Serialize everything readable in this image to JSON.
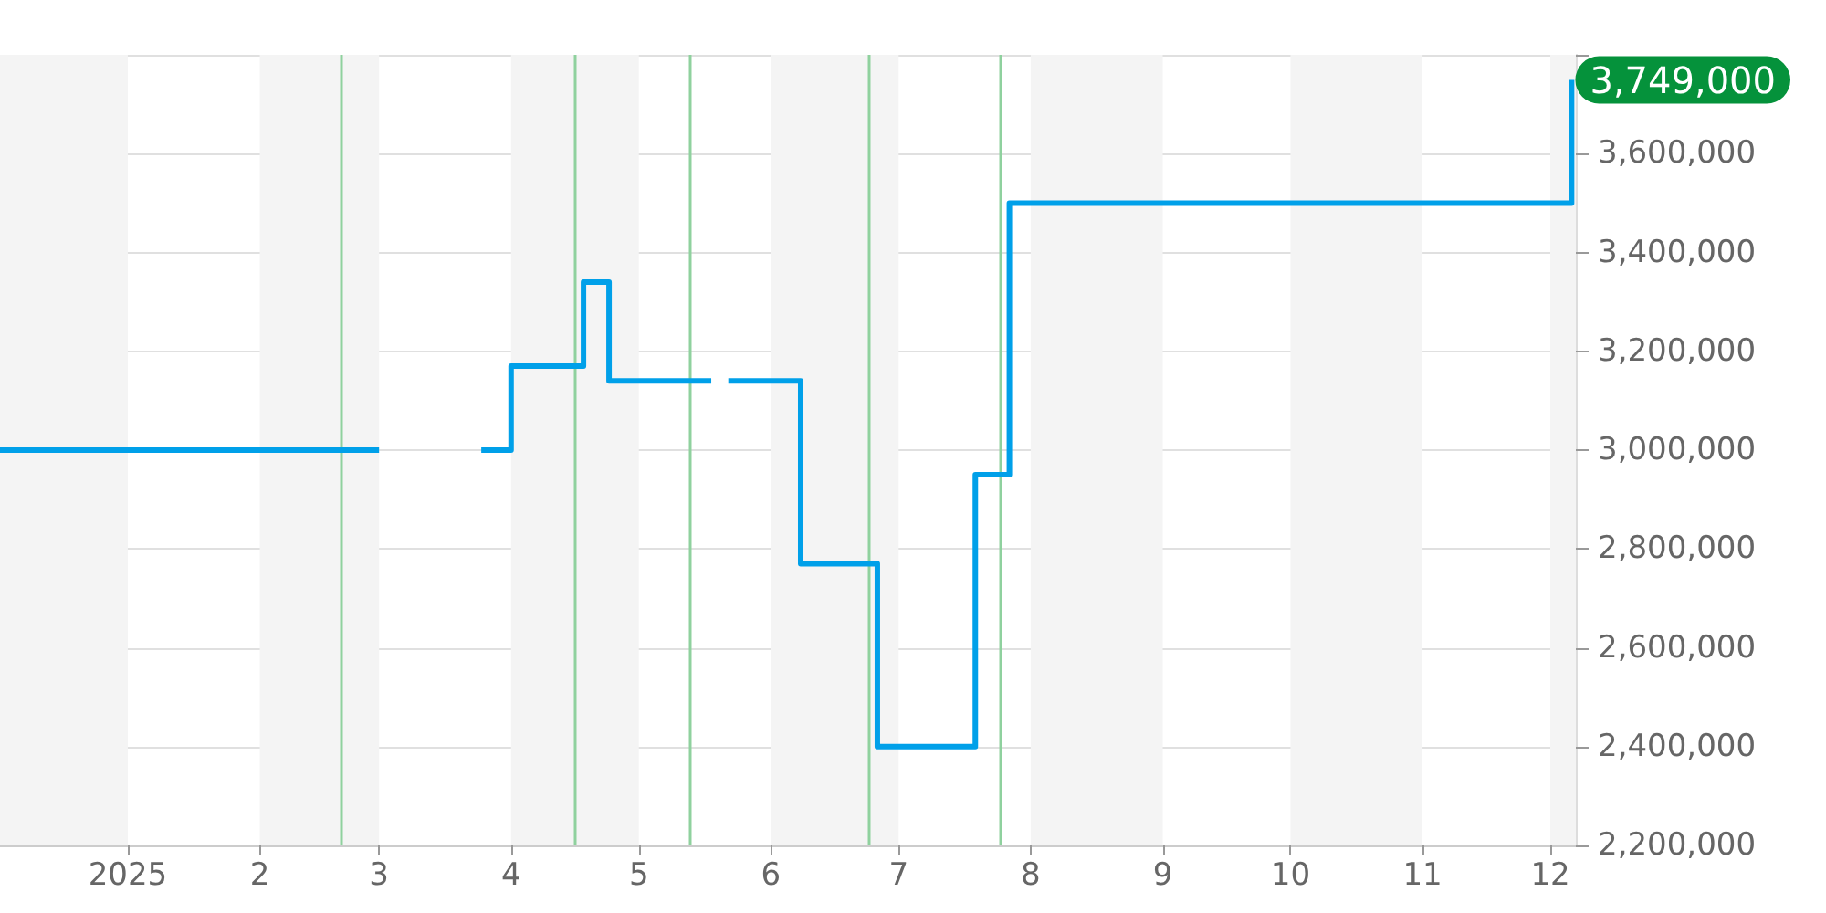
{
  "chart_data": {
    "type": "step",
    "x": [
      "2024-12-02",
      "2025-02-21",
      "2025-03-01",
      "2025-03-25",
      "2025-04-01",
      "2025-04-18",
      "2025-04-24",
      "2025-05-15",
      "2025-05-18",
      "2025-05-22",
      "2025-06-08",
      "2025-06-26",
      "2025-07-19",
      "2025-07-27",
      "2025-12-05",
      "2025-12-06"
    ],
    "series": [
      {
        "color": "#00a0e9",
        "values": [
          3000000,
          3000000,
          null,
          3000000,
          3170000,
          3340000,
          3140000,
          3140000,
          null,
          3140000,
          2770000,
          2400000,
          2950000,
          3500000,
          3500000,
          3749000
        ],
        "value_labels": [
          null,
          null,
          null,
          null,
          null,
          null,
          null,
          null,
          null,
          null,
          null,
          null,
          null,
          null,
          null,
          "3,749,000"
        ]
      }
    ],
    "xlim": [
      "2024-12-02",
      "2025-12-07"
    ],
    "xticks": [
      {
        "value": "2025-01-01",
        "label": "2025"
      },
      {
        "value": "2025-02-01",
        "label": "2"
      },
      {
        "value": "2025-03-01",
        "label": "3"
      },
      {
        "value": "2025-04-01",
        "label": "4"
      },
      {
        "value": "2025-05-01",
        "label": "5"
      },
      {
        "value": "2025-06-01",
        "label": "6"
      },
      {
        "value": "2025-07-01",
        "label": "7"
      },
      {
        "value": "2025-08-01",
        "label": "8"
      },
      {
        "value": "2025-09-01",
        "label": "9"
      },
      {
        "value": "2025-10-01",
        "label": "10"
      },
      {
        "value": "2025-11-01",
        "label": "11"
      },
      {
        "value": "2025-12-01",
        "label": "12"
      }
    ],
    "ylim": [
      2200000,
      3800000
    ],
    "yticks": [
      {
        "value": 2200000,
        "label": "2,200,000"
      },
      {
        "value": 2400000,
        "label": "2,400,000"
      },
      {
        "value": 2600000,
        "label": "2,600,000"
      },
      {
        "value": 2800000,
        "label": "2,800,000"
      },
      {
        "value": 3000000,
        "label": "3,000,000"
      },
      {
        "value": 3200000,
        "label": "3,200,000"
      },
      {
        "value": 3400000,
        "label": "3,400,000"
      },
      {
        "value": 3600000,
        "label": "3,600,000"
      },
      {
        "value": 3800000,
        "label": null
      }
    ],
    "grid": "y",
    "marker": "none",
    "line_style": "solid",
    "ref_lines": [
      {
        "axis": "x",
        "value": "2025-02-20",
        "color": "#8fd19e"
      },
      {
        "axis": "x",
        "value": "2025-04-16",
        "color": "#8fd19e"
      },
      {
        "axis": "x",
        "value": "2025-05-13",
        "color": "#8fd19e"
      },
      {
        "axis": "x",
        "value": "2025-06-24",
        "color": "#8fd19e"
      },
      {
        "axis": "x",
        "value": "2025-07-25",
        "color": "#8fd19e"
      }
    ],
    "bands": [
      {
        "axis": "x",
        "from": "2024-12-02",
        "to": "2025-01-01",
        "color": "#f4f4f4"
      },
      {
        "axis": "x",
        "from": "2025-02-01",
        "to": "2025-03-01",
        "color": "#f4f4f4"
      },
      {
        "axis": "x",
        "from": "2025-04-01",
        "to": "2025-05-01",
        "color": "#f4f4f4"
      },
      {
        "axis": "x",
        "from": "2025-06-01",
        "to": "2025-07-01",
        "color": "#f4f4f4"
      },
      {
        "axis": "x",
        "from": "2025-08-01",
        "to": "2025-09-01",
        "color": "#f4f4f4"
      },
      {
        "axis": "x",
        "from": "2025-10-01",
        "to": "2025-11-01",
        "color": "#f4f4f4"
      },
      {
        "axis": "x",
        "from": "2025-12-01",
        "to": "2025-12-07",
        "color": "#f4f4f4"
      }
    ]
  }
}
